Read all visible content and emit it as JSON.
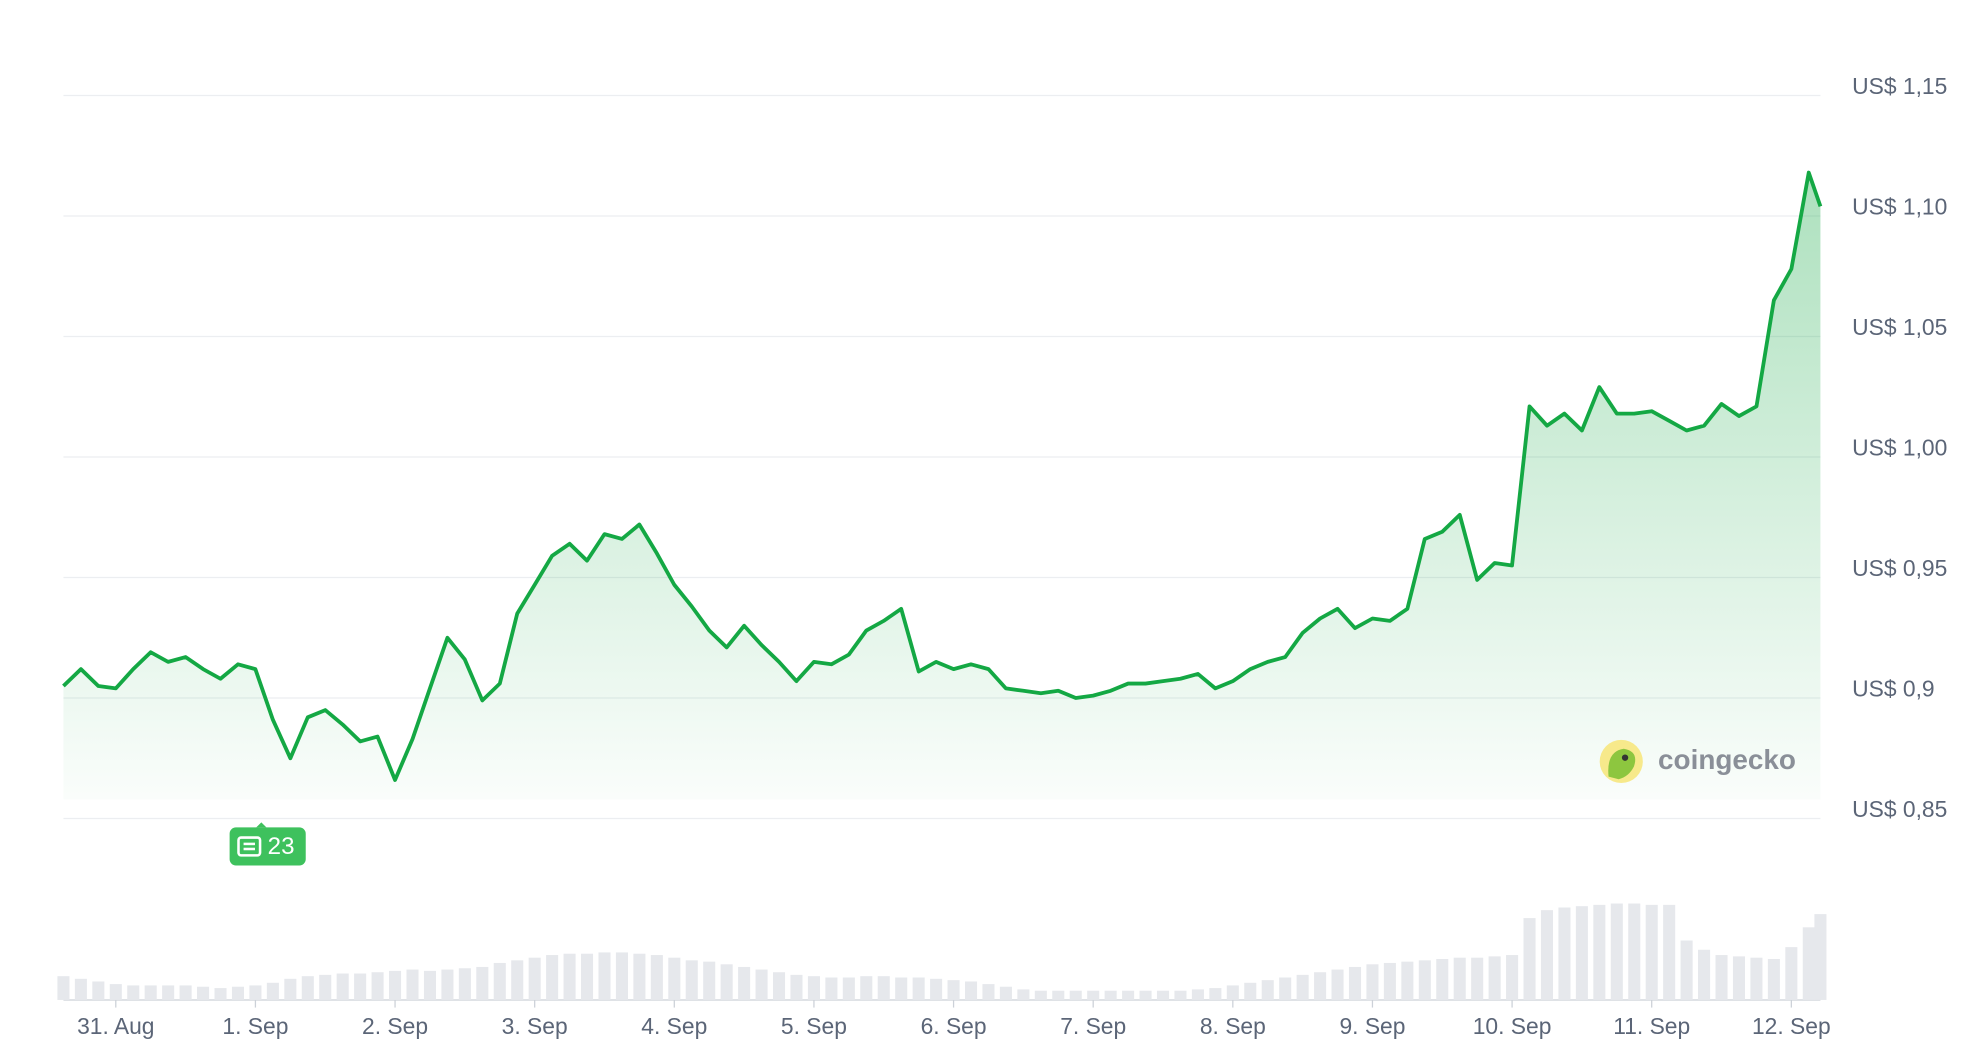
{
  "chart_data": {
    "type": "line",
    "x": [
      -9,
      -6,
      -3,
      0,
      3,
      6,
      9,
      12,
      15,
      18,
      21,
      24,
      27,
      30,
      33,
      36,
      39,
      42,
      45,
      48,
      51,
      54,
      57,
      60,
      63,
      66,
      69,
      72,
      75,
      78,
      81,
      84,
      87,
      90,
      93,
      96,
      99,
      102,
      105,
      108,
      111,
      114,
      117,
      120,
      123,
      126,
      129,
      132,
      135,
      138,
      141,
      144,
      147,
      150,
      153,
      156,
      159,
      162,
      165,
      168,
      171,
      174,
      177,
      180,
      183,
      186,
      189,
      192,
      195,
      198,
      201,
      204,
      207,
      210,
      213,
      216,
      219,
      222,
      225,
      228,
      231,
      234,
      237,
      240,
      243,
      246,
      249,
      252,
      255,
      258,
      261,
      264,
      267,
      270,
      273,
      276,
      279,
      282,
      285,
      288,
      291,
      293
    ],
    "series": [
      {
        "color": "#14a844",
        "values": [
          0.905,
          0.912,
          0.905,
          0.904,
          0.912,
          0.919,
          0.915,
          0.917,
          0.912,
          0.908,
          0.914,
          0.912,
          0.891,
          0.875,
          0.892,
          0.895,
          0.889,
          0.882,
          0.884,
          0.866,
          0.883,
          0.904,
          0.925,
          0.916,
          0.899,
          0.906,
          0.935,
          0.947,
          0.959,
          0.964,
          0.957,
          0.968,
          0.966,
          0.972,
          0.96,
          0.947,
          0.938,
          0.928,
          0.921,
          0.93,
          0.922,
          0.915,
          0.907,
          0.915,
          0.914,
          0.918,
          0.928,
          0.932,
          0.937,
          0.911,
          0.915,
          0.912,
          0.914,
          0.912,
          0.904,
          0.903,
          0.902,
          0.903,
          0.9,
          0.901,
          0.903,
          0.906,
          0.906,
          0.907,
          0.908,
          0.91,
          0.904,
          0.907,
          0.912,
          0.915,
          0.917,
          0.927,
          0.933,
          0.937,
          0.929,
          0.933,
          0.932,
          0.937,
          0.966,
          0.969,
          0.976,
          0.949,
          0.956,
          0.955,
          1.021,
          1.013,
          1.018,
          1.011,
          1.029,
          1.018,
          1.018,
          1.019,
          1.015,
          1.011,
          1.013,
          1.022,
          1.017,
          1.021,
          1.065,
          1.078,
          1.118,
          1.104
        ]
      }
    ],
    "volume": {
      "color": "#e6e8ec",
      "values": [
        18,
        16,
        14,
        12,
        11,
        11,
        11,
        11,
        10,
        9,
        10,
        11,
        13,
        16,
        18,
        19,
        20,
        20,
        21,
        22,
        23,
        22,
        23,
        24,
        25,
        28,
        30,
        32,
        34,
        35,
        35,
        36,
        36,
        35,
        34,
        32,
        30,
        29,
        27,
        25,
        23,
        21,
        19,
        18,
        17,
        17,
        18,
        18,
        17,
        17,
        16,
        15,
        14,
        12,
        10,
        8,
        7,
        7,
        7,
        7,
        7,
        7,
        7,
        7,
        7,
        8,
        9,
        11,
        13,
        15,
        17,
        19,
        21,
        23,
        25,
        27,
        28,
        29,
        30,
        31,
        32,
        32,
        33,
        34,
        62,
        68,
        70,
        71,
        72,
        73,
        73,
        72,
        72,
        45,
        38,
        34,
        33,
        32,
        31,
        40,
        55,
        65
      ]
    },
    "xlim": [
      -9,
      293
    ],
    "xticks": [
      {
        "value": 0,
        "label": "31. Aug"
      },
      {
        "value": 24,
        "label": "1. Sep"
      },
      {
        "value": 48,
        "label": "2. Sep"
      },
      {
        "value": 72,
        "label": "3. Sep"
      },
      {
        "value": 96,
        "label": "4. Sep"
      },
      {
        "value": 120,
        "label": "5. Sep"
      },
      {
        "value": 144,
        "label": "6. Sep"
      },
      {
        "value": 168,
        "label": "7. Sep"
      },
      {
        "value": 192,
        "label": "8. Sep"
      },
      {
        "value": 216,
        "label": "9. Sep"
      },
      {
        "value": 240,
        "label": "10. Sep"
      },
      {
        "value": 264,
        "label": "11. Sep"
      },
      {
        "value": 288,
        "label": "12. Sep"
      }
    ],
    "ylim": [
      0.85,
      1.15
    ],
    "yticks": [
      {
        "value": 0.85,
        "label": "US$ 0,85"
      },
      {
        "value": 0.9,
        "label": "US$ 0,9"
      },
      {
        "value": 0.95,
        "label": "US$ 0,95"
      },
      {
        "value": 1.0,
        "label": "US$ 1,00"
      },
      {
        "value": 1.05,
        "label": "US$ 1,05"
      },
      {
        "value": 1.1,
        "label": "US$ 1,10"
      },
      {
        "value": 1.15,
        "label": "US$ 1,15"
      }
    ],
    "grid": true,
    "annotation": "23",
    "watermark": "coingecko"
  }
}
